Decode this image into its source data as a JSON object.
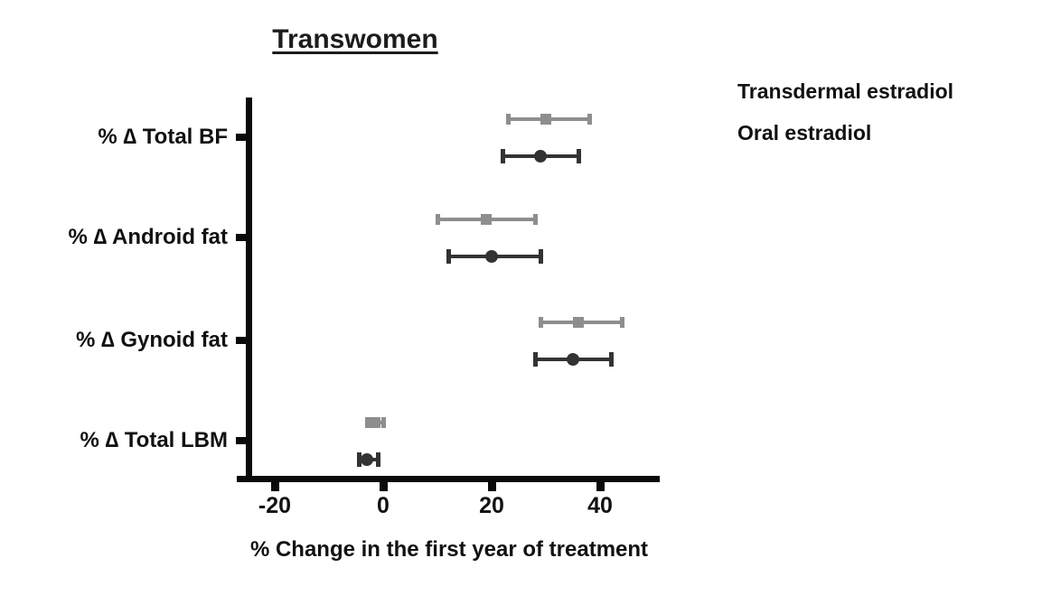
{
  "title": "Transwomen",
  "x_axis_label": "% Change in the first year of treatment",
  "chart_data": {
    "type": "scatter",
    "subtype": "horizontal-dot-plot-with-error-bars",
    "title": "Transwomen",
    "xlabel": "% Change in the first year of treatment",
    "ylabel": "",
    "categories": [
      "% ∆ Total BF",
      "% ∆ Android fat",
      "% ∆ Gynoid fat",
      "% ∆ Total LBM"
    ],
    "x_ticks": [
      -20,
      0,
      20,
      40
    ],
    "xlim": [
      -27,
      51
    ],
    "grid": false,
    "legend_position": "top-right",
    "series": [
      {
        "name": "Transdermal estradiol",
        "marker": "circle",
        "color": "#333333",
        "values": [
          {
            "category": "% ∆ Total BF",
            "mean": 29,
            "lo": 22,
            "hi": 36
          },
          {
            "category": "% ∆ Android fat",
            "mean": 20,
            "lo": 12,
            "hi": 29
          },
          {
            "category": "% ∆ Gynoid fat",
            "mean": 35,
            "lo": 28,
            "hi": 42
          },
          {
            "category": "% ∆ Total LBM",
            "mean": -3,
            "lo": -4.5,
            "hi": -1
          }
        ]
      },
      {
        "name": "Oral estradiol",
        "marker": "square",
        "color": "#8e8e8e",
        "values": [
          {
            "category": "% ∆ Total BF",
            "mean": 30,
            "lo": 23,
            "hi": 38
          },
          {
            "category": "% ∆ Android fat",
            "mean": 19,
            "lo": 10,
            "hi": 28
          },
          {
            "category": "% ∆ Gynoid fat",
            "mean": 36,
            "lo": 29,
            "hi": 44
          },
          {
            "category": "% ∆ Total LBM",
            "mean": -1.5,
            "lo": -3,
            "hi": 0
          }
        ]
      }
    ]
  }
}
